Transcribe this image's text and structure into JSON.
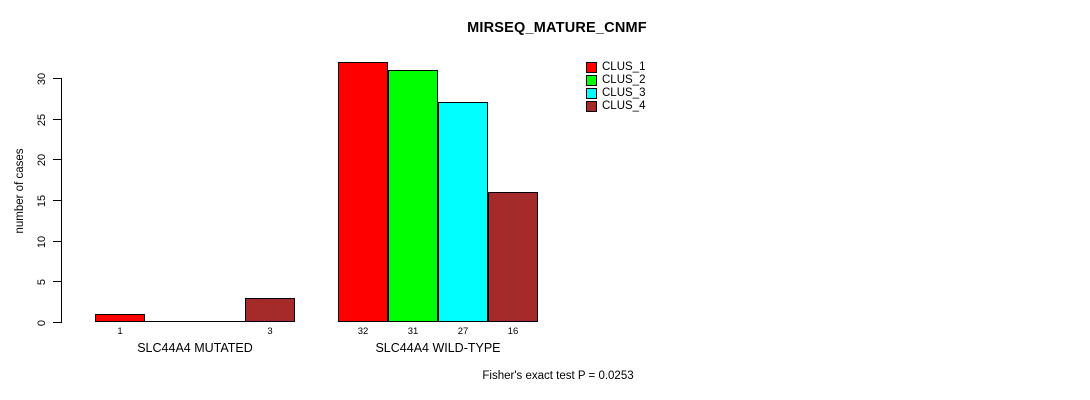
{
  "chart_data": {
    "type": "bar",
    "title": "MIRSEQ_MATURE_CNMF",
    "ylabel": "number of cases",
    "ylim": [
      0,
      30
    ],
    "yticks": [
      0,
      5,
      10,
      15,
      20,
      25,
      30
    ],
    "grid": false,
    "legend_position": "top-right",
    "series": [
      {
        "name": "CLUS_1",
        "color": "#FF0000"
      },
      {
        "name": "CLUS_2",
        "color": "#00FF00"
      },
      {
        "name": "CLUS_3",
        "color": "#00FFFF"
      },
      {
        "name": "CLUS_4",
        "color": "#A52A2A"
      }
    ],
    "groups": [
      {
        "label": "SLC44A4 MUTATED",
        "values": [
          1,
          0,
          0,
          3
        ],
        "bar_labels": [
          "1",
          "",
          "",
          "3"
        ]
      },
      {
        "label": "SLC44A4 WILD-TYPE",
        "values": [
          32,
          31,
          27,
          16
        ],
        "bar_labels": [
          "32",
          "31",
          "27",
          "16"
        ]
      }
    ],
    "annotation": "Fisher's exact test P = 0.0253"
  }
}
